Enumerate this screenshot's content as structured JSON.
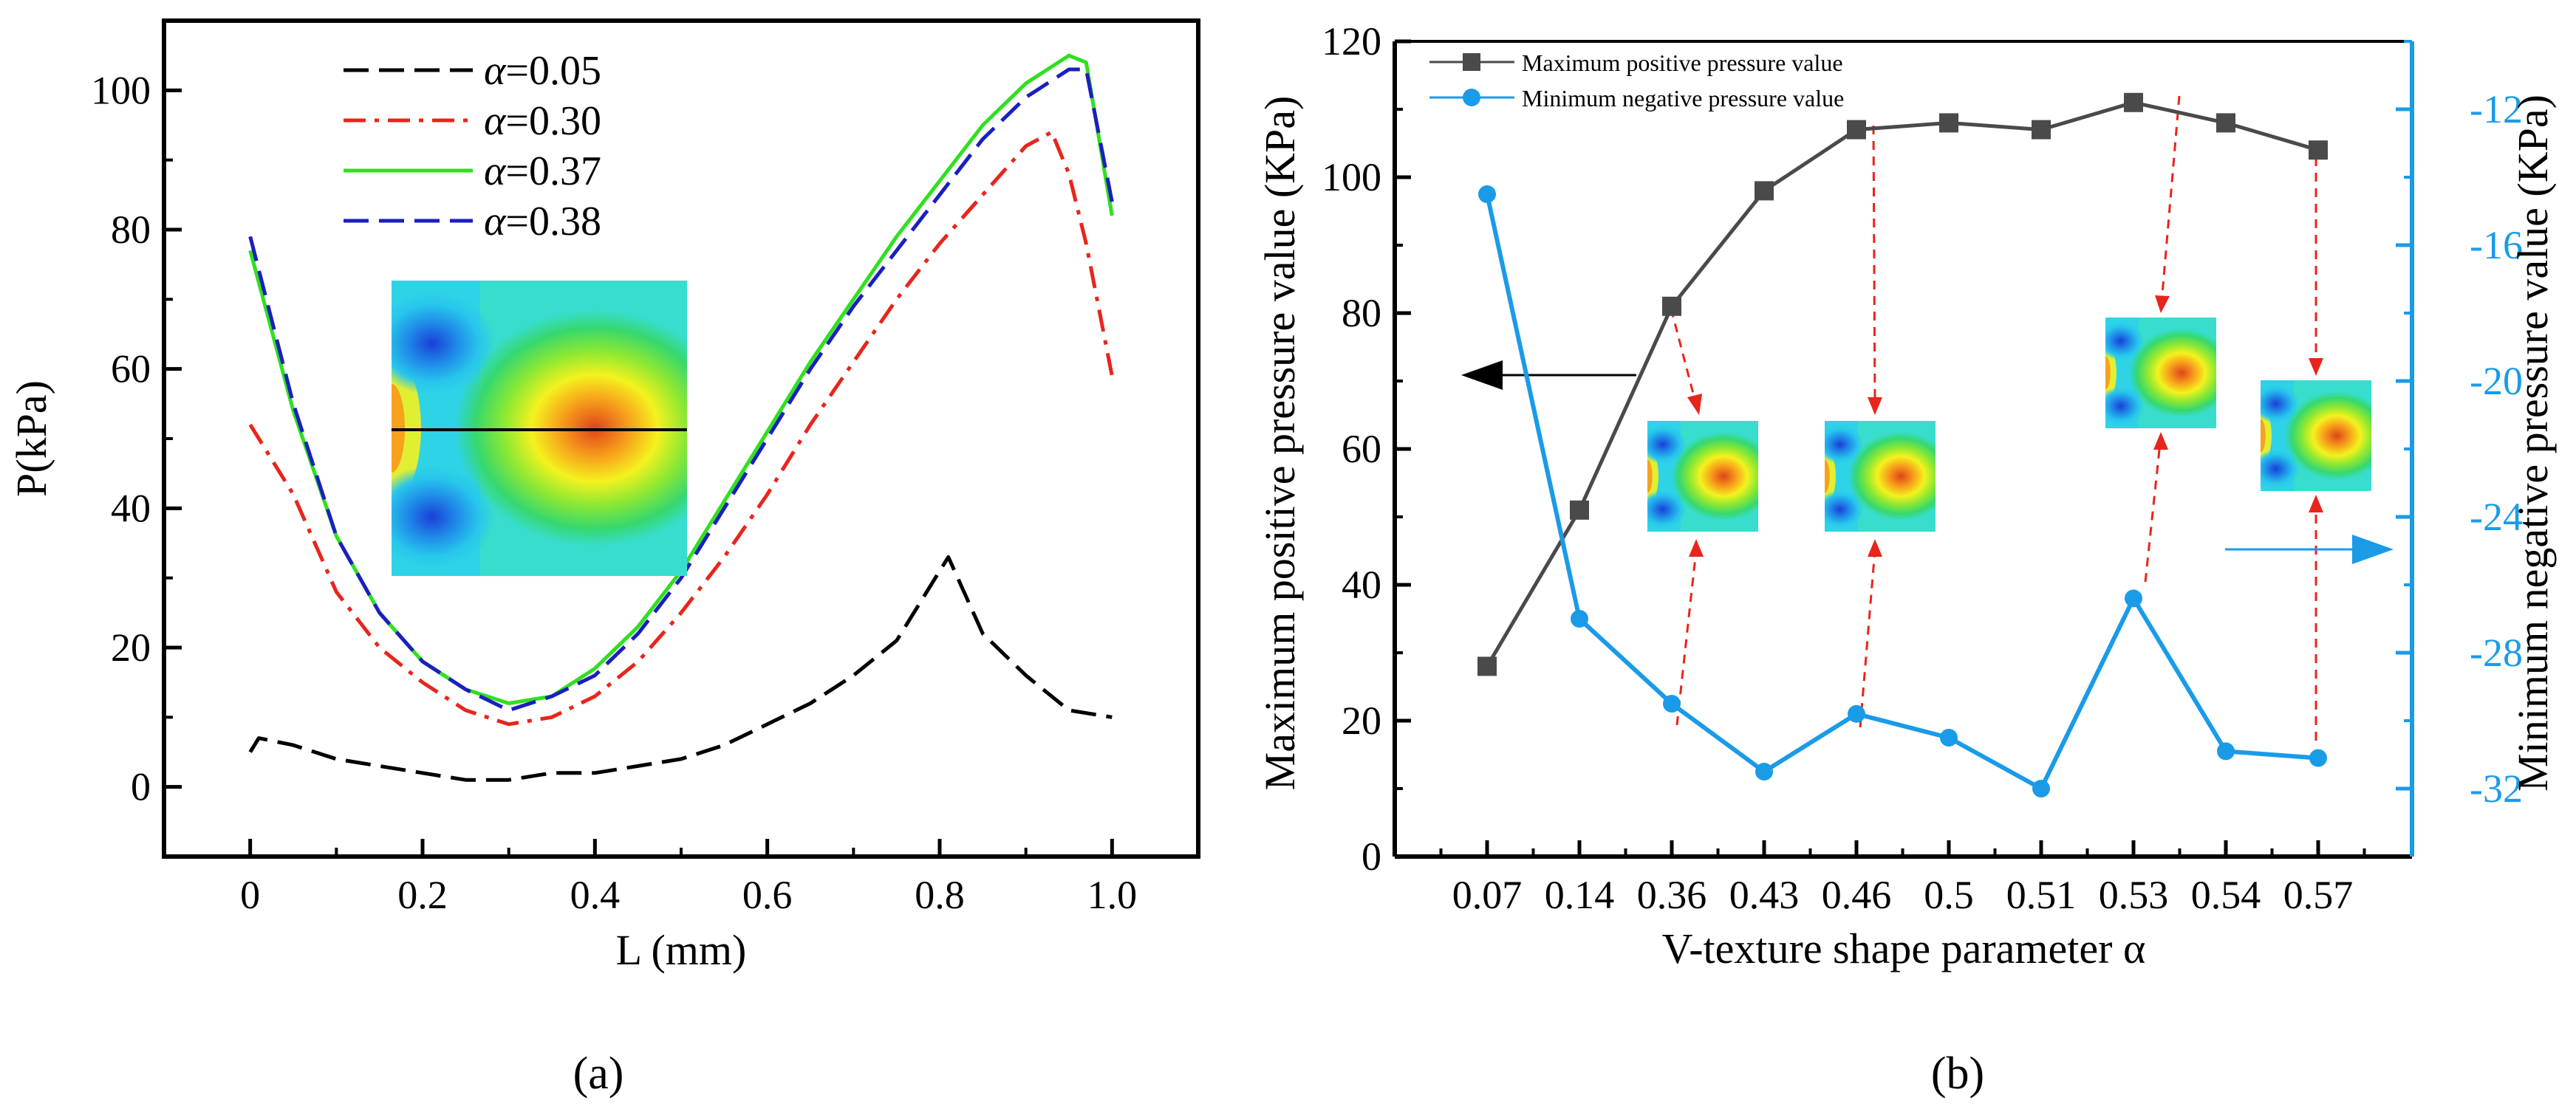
{
  "figure": {
    "panel_a_label": "(a)",
    "panel_b_label": "(b)"
  },
  "chart_data": [
    {
      "type": "line",
      "panel": "a",
      "title": "",
      "xlabel": "L (mm)",
      "ylabel": "P(kPa)",
      "xlim": [
        -0.1,
        1.1
      ],
      "ylim": [
        -10,
        110
      ],
      "xticks": [
        "0",
        "0.2",
        "0.4",
        "0.6",
        "0.8",
        "1.0"
      ],
      "xtick_values": [
        0,
        0.2,
        0.4,
        0.6,
        0.8,
        1.0
      ],
      "yticks": [
        "0",
        "20",
        "40",
        "60",
        "80",
        "100"
      ],
      "ytick_values": [
        0,
        20,
        40,
        60,
        80,
        100
      ],
      "legend_position": "top-center",
      "series": [
        {
          "name": "α=0.05",
          "greek": "α",
          "value_text": "=0.05",
          "color": "#000000",
          "dash": "long-dash",
          "x": [
            0.0,
            0.01,
            0.05,
            0.1,
            0.15,
            0.2,
            0.25,
            0.3,
            0.35,
            0.4,
            0.45,
            0.5,
            0.55,
            0.6,
            0.65,
            0.7,
            0.75,
            0.8,
            0.81,
            0.85,
            0.9,
            0.95,
            1.0
          ],
          "values": [
            5,
            7,
            6,
            4,
            3,
            2,
            1,
            1,
            2,
            2,
            3,
            4,
            6,
            9,
            12,
            16,
            21,
            31,
            33,
            22,
            16,
            11,
            10
          ]
        },
        {
          "name": "α=0.30",
          "greek": "α",
          "value_text": "=0.30",
          "color": "#e8251b",
          "dash": "dash-dot",
          "x": [
            0.0,
            0.05,
            0.1,
            0.15,
            0.2,
            0.25,
            0.3,
            0.35,
            0.4,
            0.45,
            0.5,
            0.55,
            0.6,
            0.65,
            0.7,
            0.75,
            0.8,
            0.85,
            0.9,
            0.93,
            0.95,
            0.97,
            1.0
          ],
          "values": [
            52,
            42,
            28,
            20,
            15,
            11,
            9,
            10,
            13,
            18,
            25,
            33,
            42,
            52,
            61,
            70,
            78,
            85,
            92,
            94,
            88,
            78,
            59
          ]
        },
        {
          "name": "α=0.37",
          "greek": "α",
          "value_text": "=0.37",
          "color": "#2fe01f",
          "dash": "solid",
          "x": [
            0.0,
            0.05,
            0.1,
            0.15,
            0.2,
            0.25,
            0.3,
            0.35,
            0.4,
            0.45,
            0.5,
            0.55,
            0.6,
            0.65,
            0.7,
            0.75,
            0.8,
            0.85,
            0.9,
            0.95,
            0.97,
            1.0
          ],
          "values": [
            77,
            54,
            36,
            25,
            18,
            14,
            12,
            13,
            17,
            23,
            31,
            41,
            51,
            61,
            70,
            79,
            87,
            95,
            101,
            105,
            104,
            82
          ]
        },
        {
          "name": "α=0.38",
          "greek": "α",
          "value_text": "=0.38",
          "color": "#1a1fbf",
          "dash": "long-dash",
          "x": [
            0.0,
            0.05,
            0.1,
            0.15,
            0.2,
            0.25,
            0.3,
            0.35,
            0.4,
            0.45,
            0.5,
            0.55,
            0.6,
            0.65,
            0.7,
            0.75,
            0.8,
            0.85,
            0.9,
            0.95,
            0.97,
            1.0
          ],
          "values": [
            79,
            55,
            36,
            25,
            18,
            14,
            11,
            13,
            16,
            22,
            30,
            40,
            50,
            60,
            69,
            77,
            85,
            93,
            99,
            103,
            103,
            84
          ]
        }
      ]
    },
    {
      "type": "line",
      "panel": "b",
      "title": "",
      "xlabel": "V-texture shape parameter α",
      "ylabel": "Maximum positive pressure value (KPa)",
      "ylabel_right": "Minimum negative pressure value (KPa)",
      "categories": [
        "0.07",
        "0.14",
        "0.36",
        "0.43",
        "0.46",
        "0.5",
        "0.51",
        "0.53",
        "0.54",
        "0.57"
      ],
      "ylim": [
        0,
        120
      ],
      "yticks": [
        "0",
        "20",
        "40",
        "60",
        "80",
        "100",
        "120"
      ],
      "ytick_values": [
        0,
        20,
        40,
        60,
        80,
        100,
        120
      ],
      "ylim_right": [
        -34,
        -10
      ],
      "yticks_right": [
        "-12",
        "-16",
        "-20",
        "-24",
        "-28",
        "-32"
      ],
      "ytick_right_values": [
        -12,
        -16,
        -20,
        -24,
        -28,
        -32
      ],
      "legend_position": "top-left",
      "series": [
        {
          "name": "Maximum positive pressure value",
          "axis": "left",
          "color": "#4a4a4a",
          "marker": "square",
          "values": [
            28,
            51,
            81,
            98,
            107,
            108,
            107,
            111,
            108,
            104
          ]
        },
        {
          "name": "Minimum negative pressure value",
          "axis": "right",
          "color": "#1a9be8",
          "marker": "circle",
          "values": [
            -14.5,
            -27.0,
            -29.5,
            -31.5,
            -29.8,
            -30.5,
            -32.0,
            -26.4,
            -30.9,
            -31.1
          ]
        }
      ]
    }
  ]
}
